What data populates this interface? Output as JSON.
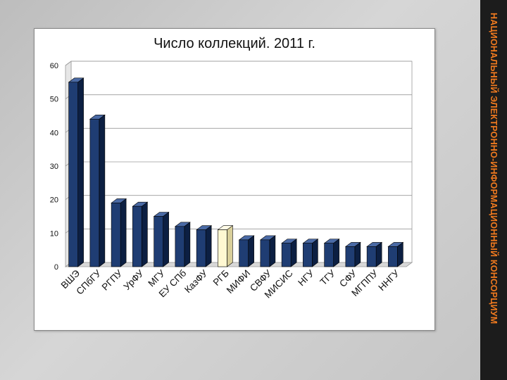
{
  "side_banner": "НАЦИОНАЛЬНЫЙ ЭЛЕКТРОННО-ИНФОРМАЦИОННЫЙ КОНСОРЦИУМ",
  "colors": {
    "bar": "#1f3d73",
    "bar_highlight": "#fff8d2",
    "banner_text": "#f07a1f"
  },
  "chart_data": {
    "type": "bar",
    "title": "Число коллекций. 2011 г.",
    "xlabel": "",
    "ylabel": "",
    "ylim": [
      0,
      60
    ],
    "yticks": [
      0,
      10,
      20,
      30,
      40,
      50,
      60
    ],
    "grid": true,
    "categories": [
      "ВШЭ",
      "СПбГУ",
      "РГПУ",
      "УрФУ",
      "МГУ",
      "ЕУ СПб",
      "КазФУ",
      "РГБ",
      "МИФИ",
      "СВФУ",
      "МИСИС",
      "НГУ",
      "ТГУ",
      "СФУ",
      "МГППУ",
      "ННГУ"
    ],
    "values": [
      55,
      44,
      19,
      18,
      15,
      12,
      11,
      11,
      8,
      8,
      7,
      7,
      7,
      6,
      6,
      6
    ],
    "highlight_index": 7
  }
}
